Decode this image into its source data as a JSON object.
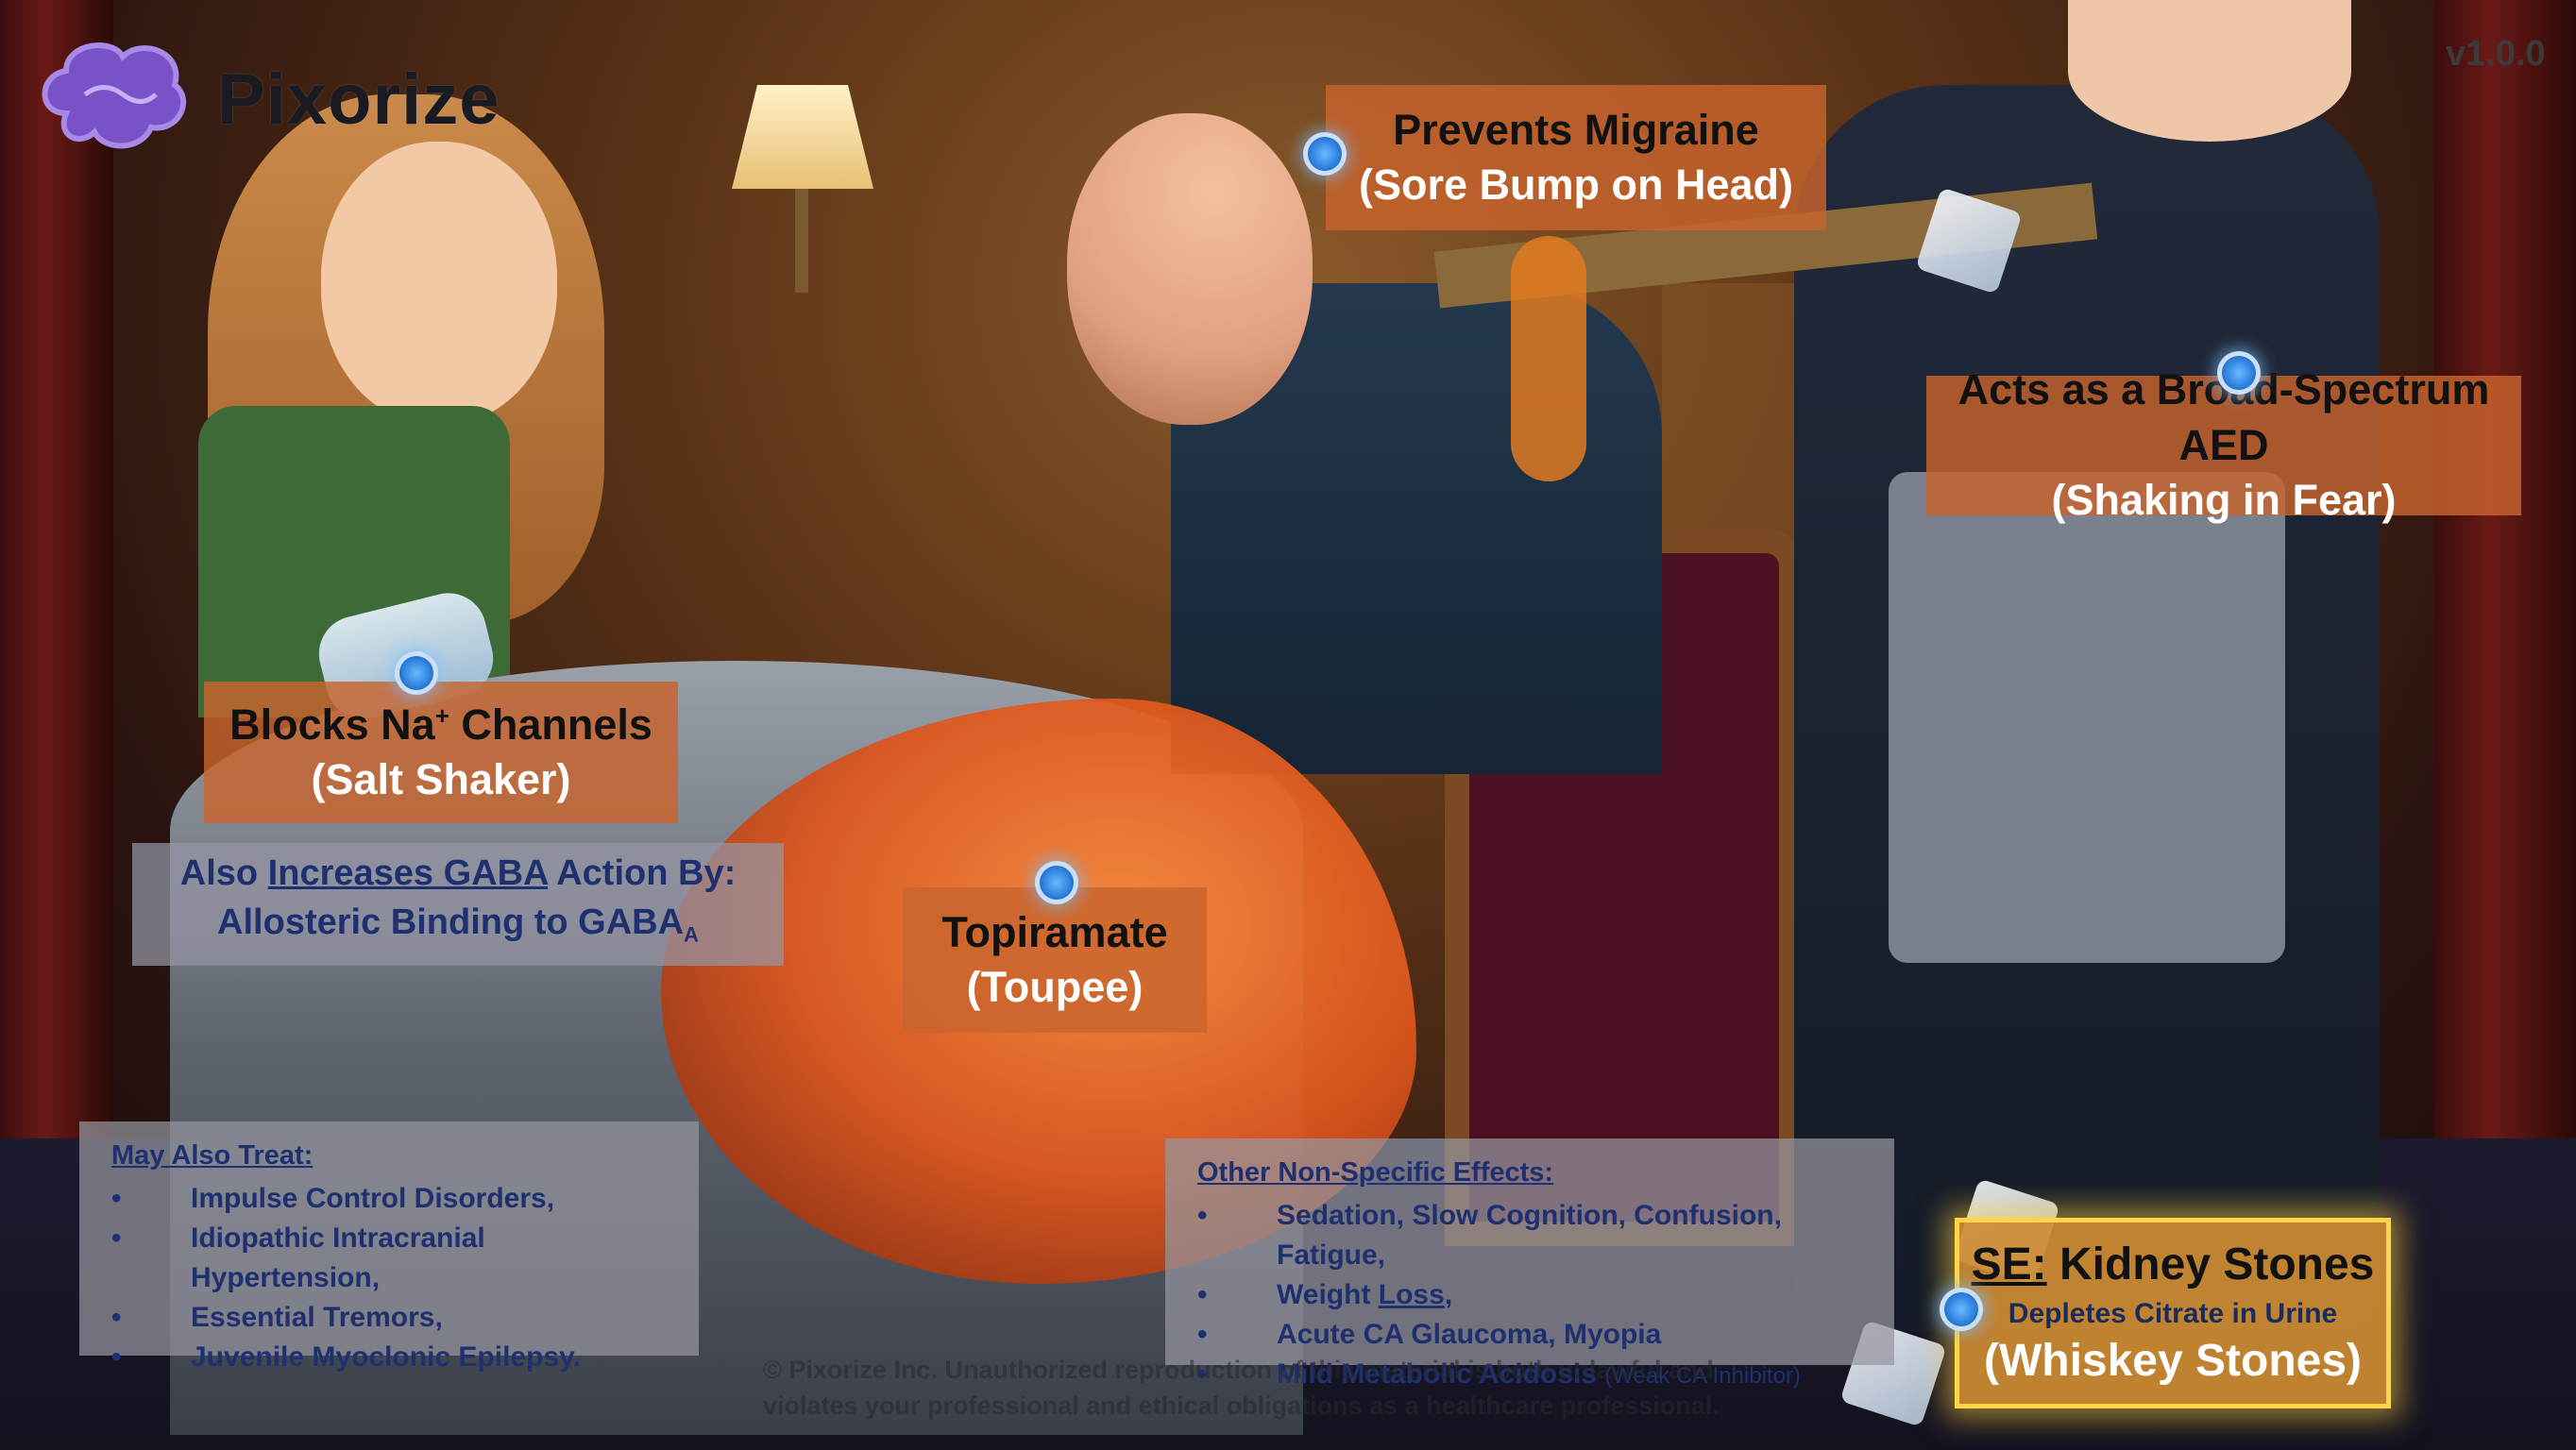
{
  "brand": {
    "name": "Pixorize",
    "version": "v1.0.0"
  },
  "labels": {
    "migraine": {
      "line1": "Prevents Migraine",
      "line2": "(Sore Bump on Head)"
    },
    "aed": {
      "line1": "Acts as a Broad-Spectrum AED",
      "line2": "(Shaking in Fear)"
    },
    "sodium": {
      "line1_pre": "Blocks Na",
      "line1_sup": "+",
      "line1_post": " Channels",
      "line2": "(Salt Shaker)"
    },
    "gaba": {
      "line1_pre": "Also ",
      "line1_link": "Increases GABA",
      "line1_post": " Action By:",
      "line2_pre": "Allosteric Binding to GABA",
      "line2_sub": "A"
    },
    "drug": {
      "line1": "Topiramate",
      "line2": "(Toupee)"
    },
    "kidney": {
      "line1_prefix": "SE:",
      "line1_rest": " Kidney Stones",
      "sub": "Depletes Citrate in Urine",
      "line2": "(Whiskey Stones)"
    }
  },
  "may_also_treat": {
    "heading": "May Also Treat:",
    "items": [
      "Impulse Control Disorders,",
      "Idiopathic Intracranial Hypertension,",
      "Essential Tremors,",
      "Juvenile Myoclonic Epilepsy."
    ]
  },
  "other_effects": {
    "heading": "Other Non-Specific Effects:",
    "item1": "Sedation, Slow Cognition, Confusion, Fatigue,",
    "item2_pre": "Weight ",
    "item2_link": "Loss",
    "item2_post": ",",
    "item3": "Acute CA Glaucoma, Myopia",
    "item4": "Mild Metabolic Acidosis",
    "item4_note": "(Weak CA Inhibitor)"
  },
  "copyright": {
    "line1": "© Pixorize Inc. Unauthorized reproduction of this material is both unlawful and",
    "line2": "violates your professional and ethical obligations as a healthcare professional."
  },
  "colors": {
    "label_orange": "#c8642d",
    "info_text": "#1e3070",
    "marker_blue": "#2f84e0",
    "gold_border": "#ffd64a"
  }
}
